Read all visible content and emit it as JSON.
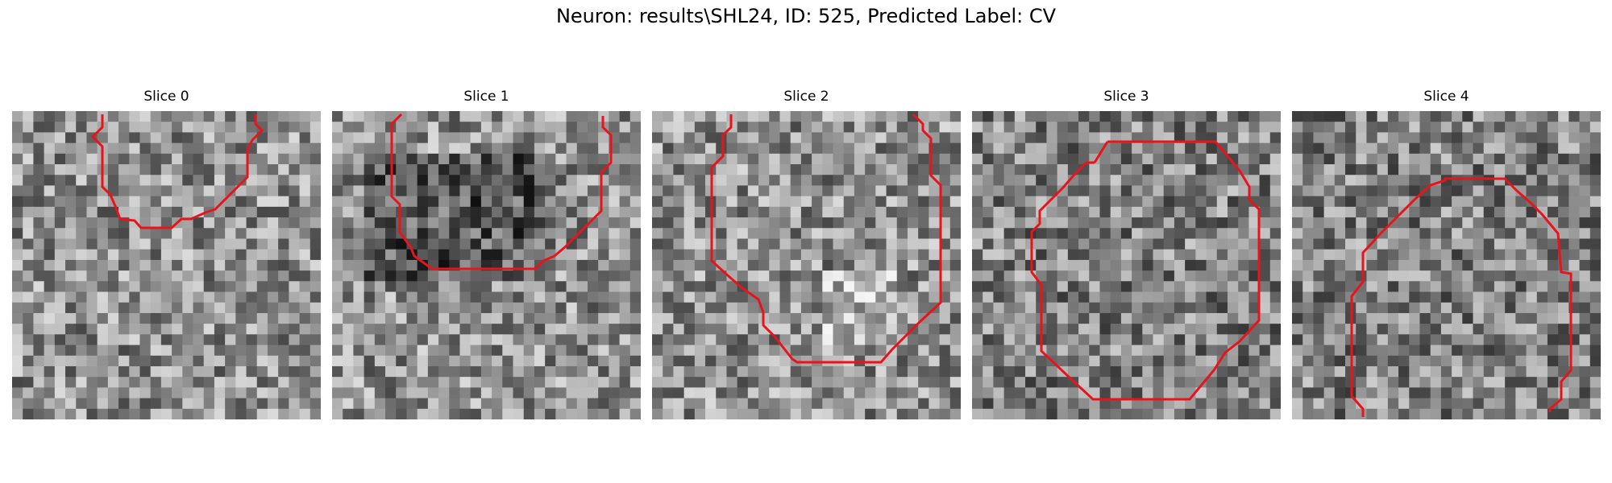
{
  "figure": {
    "title": "Neuron: results\\SHL24, ID: 525, Predicted Label: CV"
  },
  "panels": [
    {
      "title": "Slice 0"
    },
    {
      "title": "Slice 1"
    },
    {
      "title": "Slice 2"
    },
    {
      "title": "Slice 3"
    },
    {
      "title": "Slice 4"
    }
  ],
  "style": {
    "contour_color": "#e8141c",
    "colormap": "gray"
  }
}
